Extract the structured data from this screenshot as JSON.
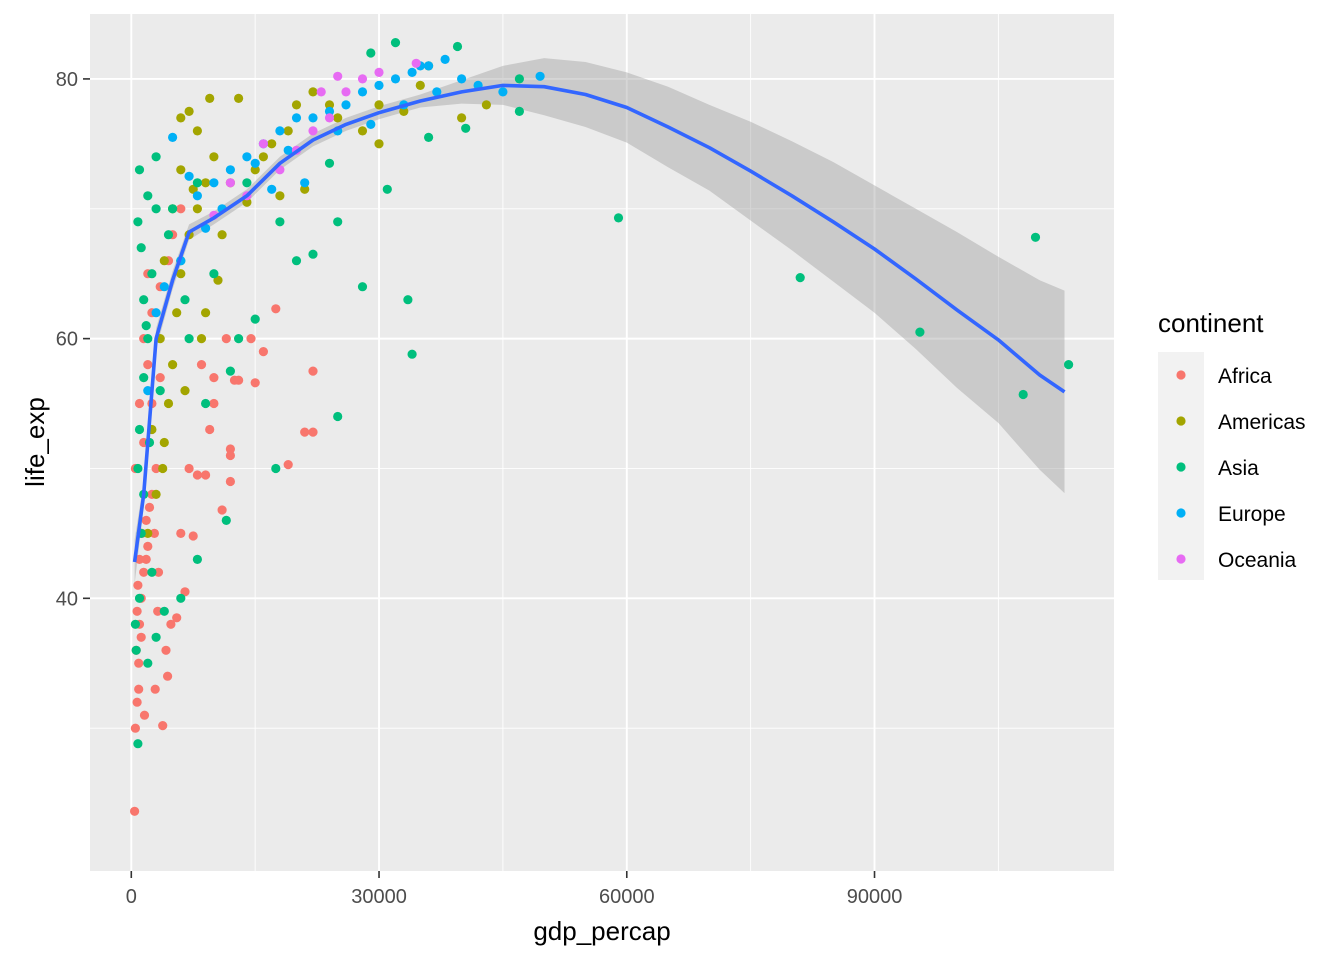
{
  "chart_data": {
    "type": "scatter",
    "xlabel": "gdp_percap",
    "ylabel": "life_exp",
    "xlim": [
      -5000,
      119000
    ],
    "ylim": [
      19,
      85
    ],
    "x_ticks": [
      0,
      30000,
      60000,
      90000
    ],
    "x_tick_labels": [
      "0",
      "30000",
      "60000",
      "90000"
    ],
    "y_ticks": [
      40,
      60,
      80
    ],
    "y_tick_labels": [
      "40",
      "60",
      "80"
    ],
    "grid": true,
    "legend": {
      "title": "continent",
      "placement": "right",
      "entries": [
        {
          "name": "Africa",
          "color": "#F8766D"
        },
        {
          "name": "Americas",
          "color": "#A3A500"
        },
        {
          "name": "Asia",
          "color": "#00BF7D"
        },
        {
          "name": "Europe",
          "color": "#00B0F6"
        },
        {
          "name": "Oceania",
          "color": "#E76BF3"
        }
      ]
    },
    "series": [
      {
        "name": "Africa",
        "color": "#F8766D",
        "points": [
          [
            400,
            23.6
          ],
          [
            500,
            30.0
          ],
          [
            700,
            32.0
          ],
          [
            900,
            35.0
          ],
          [
            1000,
            38.0
          ],
          [
            1200,
            40.0
          ],
          [
            1500,
            42.0
          ],
          [
            2000,
            44.0
          ],
          [
            1800,
            46.0
          ],
          [
            2500,
            48.0
          ],
          [
            3000,
            50.0
          ],
          [
            1500,
            52.0
          ],
          [
            2500,
            55.0
          ],
          [
            3500,
            57.0
          ],
          [
            800,
            41.0
          ],
          [
            1000,
            43.0
          ],
          [
            700,
            39.0
          ],
          [
            1300,
            45.0
          ],
          [
            2200,
            47.0
          ],
          [
            600,
            36.0
          ],
          [
            3800,
            30.2
          ],
          [
            4200,
            36.0
          ],
          [
            4800,
            38.0
          ],
          [
            5500,
            38.5
          ],
          [
            3300,
            42.0
          ],
          [
            4400,
            34.0
          ],
          [
            2900,
            33.0
          ],
          [
            6000,
            45.0
          ],
          [
            6500,
            40.5
          ],
          [
            7500,
            44.8
          ],
          [
            8000,
            49.5
          ],
          [
            9000,
            49.5
          ],
          [
            10000,
            55.0
          ],
          [
            11500,
            60.0
          ],
          [
            12500,
            56.8
          ],
          [
            13000,
            56.8
          ],
          [
            15000,
            56.6
          ],
          [
            12000,
            51.5
          ],
          [
            11000,
            46.8
          ],
          [
            12000,
            49.0
          ],
          [
            14500,
            60.0
          ],
          [
            16000,
            59.0
          ],
          [
            17500,
            62.3
          ],
          [
            19000,
            50.3
          ],
          [
            21000,
            52.8
          ],
          [
            22000,
            52.8
          ],
          [
            22000,
            57.5
          ],
          [
            12000,
            51.0
          ],
          [
            7000,
            50.0
          ],
          [
            9500,
            53.0
          ],
          [
            8500,
            58.0
          ],
          [
            10000,
            57.0
          ],
          [
            2000,
            58.0
          ],
          [
            1500,
            60.0
          ],
          [
            2500,
            62.0
          ],
          [
            3500,
            64.0
          ],
          [
            4500,
            66.0
          ],
          [
            5000,
            68.0
          ],
          [
            6000,
            70.0
          ],
          [
            2000,
            65.0
          ],
          [
            1000,
            55.0
          ],
          [
            500,
            50.0
          ],
          [
            1800,
            43.0
          ],
          [
            2800,
            45.0
          ],
          [
            1200,
            37.0
          ],
          [
            3200,
            39.0
          ],
          [
            900,
            33.0
          ],
          [
            1600,
            31.0
          ]
        ]
      },
      {
        "name": "Americas",
        "color": "#A3A500",
        "points": [
          [
            2000,
            45.0
          ],
          [
            3000,
            48.0
          ],
          [
            4000,
            52.0
          ],
          [
            4500,
            55.0
          ],
          [
            5000,
            58.0
          ],
          [
            5500,
            62.0
          ],
          [
            6000,
            65.0
          ],
          [
            7000,
            68.0
          ],
          [
            8000,
            70.0
          ],
          [
            9000,
            72.0
          ],
          [
            10000,
            74.0
          ],
          [
            8000,
            76.0
          ],
          [
            7000,
            77.5
          ],
          [
            9500,
            78.5
          ],
          [
            13000,
            78.5
          ],
          [
            15000,
            73.0
          ],
          [
            17000,
            75.0
          ],
          [
            20000,
            78.0
          ],
          [
            22000,
            79.0
          ],
          [
            25000,
            77.0
          ],
          [
            28000,
            76.0
          ],
          [
            30000,
            78.0
          ],
          [
            35000,
            79.5
          ],
          [
            36000,
            81.0
          ],
          [
            40000,
            77.0
          ],
          [
            43000,
            78.0
          ],
          [
            30000,
            75.0
          ],
          [
            18000,
            71.0
          ],
          [
            12000,
            72.0
          ],
          [
            6000,
            73.0
          ],
          [
            5000,
            70.0
          ],
          [
            4000,
            66.0
          ],
          [
            3500,
            60.0
          ],
          [
            6500,
            56.0
          ],
          [
            2500,
            53.0
          ],
          [
            9000,
            62.0
          ],
          [
            11000,
            68.0
          ],
          [
            14000,
            70.5
          ],
          [
            16000,
            74.0
          ],
          [
            19000,
            76.0
          ],
          [
            24000,
            78.0
          ],
          [
            33000,
            77.5
          ],
          [
            7500,
            71.5
          ],
          [
            6000,
            77.0
          ],
          [
            21000,
            71.5
          ],
          [
            10500,
            64.5
          ],
          [
            3800,
            50.0
          ],
          [
            8500,
            60.0
          ]
        ]
      },
      {
        "name": "Asia",
        "color": "#00BF7D",
        "points": [
          [
            800,
            28.8
          ],
          [
            600,
            36.0
          ],
          [
            1000,
            40.0
          ],
          [
            1200,
            45.0
          ],
          [
            800,
            50.0
          ],
          [
            1000,
            53.0
          ],
          [
            1500,
            57.0
          ],
          [
            2000,
            60.0
          ],
          [
            1500,
            63.0
          ],
          [
            2500,
            65.0
          ],
          [
            1200,
            67.0
          ],
          [
            800,
            69.0
          ],
          [
            2000,
            71.0
          ],
          [
            1000,
            73.0
          ],
          [
            3000,
            74.0
          ],
          [
            5000,
            70.0
          ],
          [
            8000,
            72.0
          ],
          [
            6000,
            66.0
          ],
          [
            10000,
            65.0
          ],
          [
            13000,
            60.0
          ],
          [
            15000,
            61.5
          ],
          [
            20000,
            66.0
          ],
          [
            22000,
            66.5
          ],
          [
            25000,
            54.0
          ],
          [
            25000,
            69.0
          ],
          [
            28000,
            64.0
          ],
          [
            31000,
            71.5
          ],
          [
            33500,
            63.0
          ],
          [
            34000,
            58.8
          ],
          [
            11500,
            46.0
          ],
          [
            8000,
            43.0
          ],
          [
            6000,
            40.0
          ],
          [
            4000,
            39.0
          ],
          [
            2000,
            35.0
          ],
          [
            3000,
            37.0
          ],
          [
            17500,
            50.0
          ],
          [
            12000,
            57.5
          ],
          [
            9000,
            55.0
          ],
          [
            7000,
            60.0
          ],
          [
            36000,
            75.5
          ],
          [
            40500,
            76.2
          ],
          [
            47000,
            80.0
          ],
          [
            47000,
            77.5
          ],
          [
            59000,
            69.3
          ],
          [
            81000,
            64.7
          ],
          [
            95500,
            60.5
          ],
          [
            108000,
            55.7
          ],
          [
            109500,
            67.8
          ],
          [
            113500,
            58.0
          ],
          [
            32000,
            82.8
          ],
          [
            29000,
            82.0
          ],
          [
            39500,
            82.5
          ],
          [
            4500,
            68.0
          ],
          [
            3000,
            70.0
          ],
          [
            1500,
            48.0
          ],
          [
            2200,
            52.0
          ],
          [
            3500,
            56.0
          ],
          [
            18000,
            69.0
          ],
          [
            14000,
            72.0
          ],
          [
            24000,
            73.5
          ],
          [
            6500,
            63.0
          ],
          [
            2500,
            42.0
          ],
          [
            500,
            38.0
          ],
          [
            1800,
            61.0
          ]
        ]
      },
      {
        "name": "Europe",
        "color": "#00B0F6",
        "points": [
          [
            5000,
            75.5
          ],
          [
            7000,
            72.5
          ],
          [
            8000,
            71.0
          ],
          [
            10000,
            72.0
          ],
          [
            12000,
            73.0
          ],
          [
            14000,
            74.0
          ],
          [
            16000,
            75.0
          ],
          [
            18000,
            76.0
          ],
          [
            20000,
            77.0
          ],
          [
            22000,
            77.0
          ],
          [
            24000,
            77.5
          ],
          [
            26000,
            78.0
          ],
          [
            28000,
            79.0
          ],
          [
            30000,
            79.5
          ],
          [
            32000,
            80.0
          ],
          [
            34000,
            80.5
          ],
          [
            36000,
            81.0
          ],
          [
            38000,
            81.5
          ],
          [
            40000,
            80.0
          ],
          [
            42000,
            79.5
          ],
          [
            45000,
            79.0
          ],
          [
            49500,
            80.2
          ],
          [
            9000,
            68.5
          ],
          [
            6000,
            66.0
          ],
          [
            4000,
            64.0
          ],
          [
            11000,
            70.0
          ],
          [
            15000,
            73.5
          ],
          [
            17000,
            71.5
          ],
          [
            25000,
            76.0
          ],
          [
            29000,
            76.5
          ],
          [
            33000,
            78.0
          ],
          [
            35000,
            81.0
          ],
          [
            37000,
            79.0
          ],
          [
            19000,
            74.5
          ],
          [
            21000,
            72.0
          ],
          [
            3000,
            62.0
          ],
          [
            2000,
            56.0
          ]
        ]
      },
      {
        "name": "Oceania",
        "color": "#E76BF3",
        "points": [
          [
            10000,
            69.5
          ],
          [
            14000,
            71.0
          ],
          [
            18000,
            73.0
          ],
          [
            20000,
            74.5
          ],
          [
            22000,
            76.0
          ],
          [
            24000,
            77.0
          ],
          [
            26000,
            79.0
          ],
          [
            28000,
            80.0
          ],
          [
            30000,
            80.5
          ],
          [
            34500,
            81.2
          ],
          [
            25000,
            80.2
          ],
          [
            23000,
            79.0
          ],
          [
            16000,
            75.0
          ],
          [
            12000,
            72.0
          ]
        ]
      }
    ],
    "smooth": {
      "method": "loess",
      "color": "#3366FF",
      "x": [
        400,
        1500,
        3000,
        5000,
        7000,
        10000,
        14000,
        18000,
        22000,
        26000,
        30000,
        35000,
        40000,
        45000,
        50000,
        55000,
        60000,
        65000,
        70000,
        75000,
        80000,
        85000,
        90000,
        95000,
        100000,
        105000,
        110000,
        113000
      ],
      "y": [
        42.8,
        48.0,
        60.0,
        64.5,
        68.2,
        69.3,
        71.0,
        73.5,
        75.3,
        76.5,
        77.4,
        78.3,
        79.0,
        79.5,
        79.4,
        78.8,
        77.8,
        76.3,
        74.7,
        72.9,
        71.0,
        69.0,
        66.9,
        64.6,
        62.2,
        59.9,
        57.2,
        55.9
      ],
      "ci_upper": [
        44.5,
        49.0,
        60.8,
        65.2,
        68.8,
        69.8,
        71.5,
        74.0,
        75.8,
        77.0,
        77.9,
        78.8,
        79.9,
        81.0,
        81.6,
        81.3,
        80.5,
        79.4,
        78.0,
        76.7,
        75.2,
        73.6,
        71.8,
        70.0,
        68.2,
        66.3,
        64.5,
        63.7
      ],
      "ci_lower": [
        41.1,
        47.0,
        59.2,
        63.8,
        67.6,
        68.8,
        70.5,
        73.0,
        74.8,
        76.0,
        76.9,
        77.8,
        78.1,
        78.0,
        77.2,
        76.3,
        75.1,
        73.2,
        71.4,
        69.1,
        66.8,
        64.4,
        62.0,
        59.2,
        56.2,
        53.5,
        49.9,
        48.1
      ]
    }
  }
}
